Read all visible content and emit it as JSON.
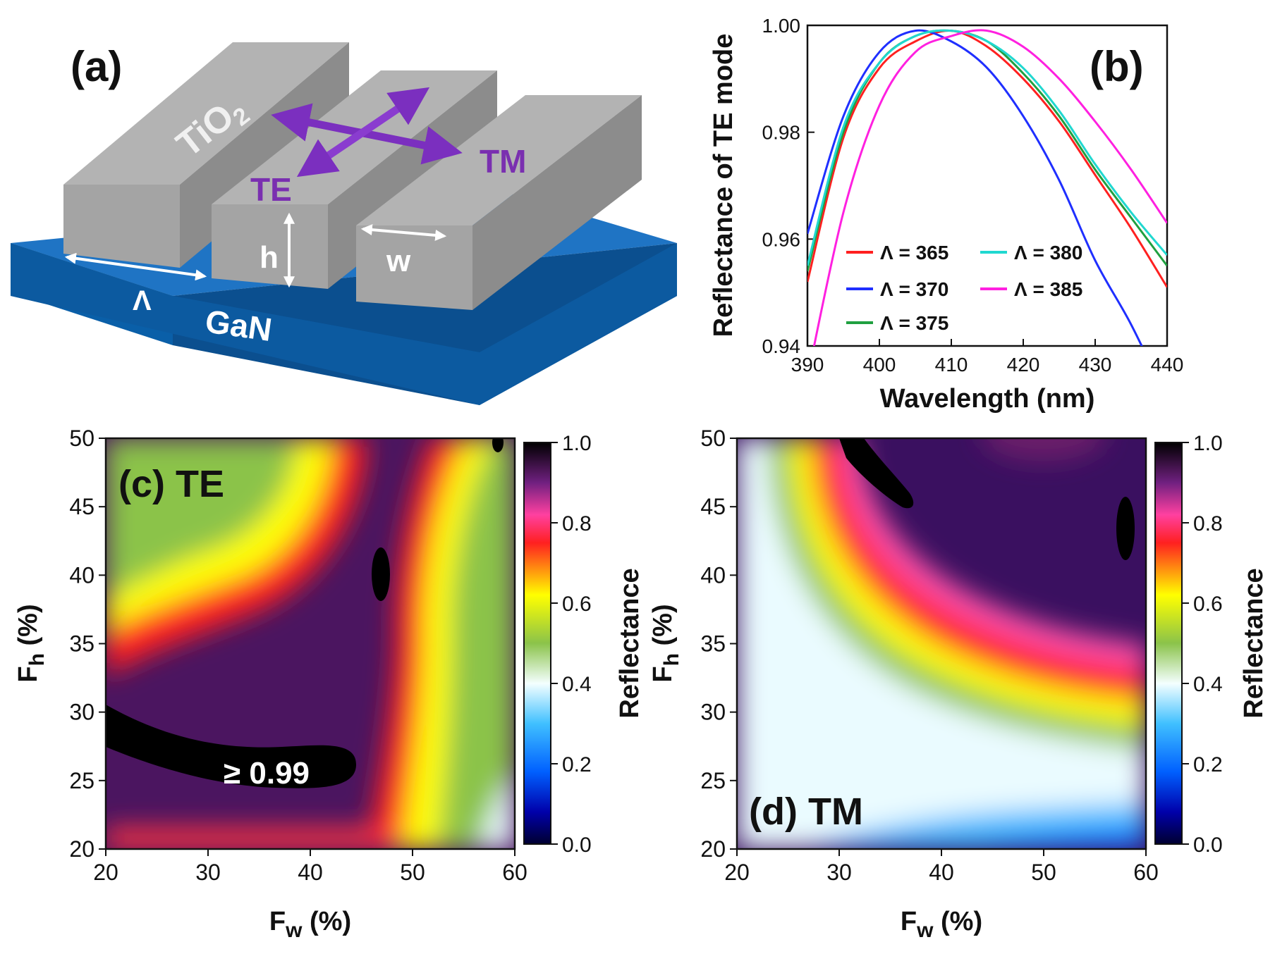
{
  "panel_a": {
    "label": "(a)",
    "tio2_label": "TiO",
    "tio2_sub": "2",
    "substrate_label": "GaN",
    "te_label": "TE",
    "tm_label": "TM",
    "h_label": "h",
    "w_label": "w",
    "period_label": "Λ",
    "colors": {
      "substrate": "#0a5fa8",
      "bars": "#a6a6a6",
      "arrows": "#7b2fbf",
      "labels": "#7a2fb0"
    }
  },
  "chart_data": [
    {
      "panel": "(b)",
      "type": "line",
      "xlabel": "Wavelength (nm)",
      "ylabel": "Reflectance of TE mode",
      "xlim": [
        390,
        440
      ],
      "ylim": [
        0.94,
        1.0
      ],
      "xticks": [
        "390",
        "400",
        "410",
        "420",
        "430",
        "440"
      ],
      "yticks": [
        "0.94",
        "0.96",
        "0.98",
        "1.00"
      ],
      "legend_position": "bottom-left",
      "x": [
        390,
        395,
        400,
        405,
        410,
        415,
        420,
        425,
        430,
        435,
        440
      ],
      "series": [
        {
          "name": "Λ = 365",
          "color": "#ff2020",
          "values": [
            0.952,
            0.979,
            0.992,
            0.997,
            0.999,
            0.996,
            0.99,
            0.982,
            0.972,
            0.962,
            0.951
          ]
        },
        {
          "name": "Λ = 370",
          "color": "#1f2fff",
          "values": [
            0.961,
            0.983,
            0.995,
            0.999,
            0.997,
            0.992,
            0.983,
            0.971,
            0.956,
            0.944,
            0.93
          ]
        },
        {
          "name": "Λ = 375",
          "color": "#20a040",
          "values": [
            0.954,
            0.98,
            0.993,
            0.998,
            0.999,
            0.997,
            0.991,
            0.983,
            0.973,
            0.964,
            0.955
          ]
        },
        {
          "name": "Λ = 380",
          "color": "#20d8d0",
          "values": [
            0.955,
            0.981,
            0.993,
            0.998,
            0.999,
            0.997,
            0.992,
            0.984,
            0.974,
            0.965,
            0.957
          ]
        },
        {
          "name": "Λ = 385",
          "color": "#ff20e0",
          "values": [
            0.934,
            0.965,
            0.985,
            0.995,
            0.998,
            0.999,
            0.996,
            0.99,
            0.982,
            0.973,
            0.963
          ]
        }
      ]
    },
    {
      "panel": "(c)",
      "mode": "TE",
      "type": "heatmap",
      "xlabel": "F",
      "xlabel_sub": "w",
      "xlabel_unit": " (%)",
      "ylabel": "F",
      "ylabel_sub": "h",
      "ylabel_unit": " (%)",
      "xlim": [
        20,
        60
      ],
      "ylim": [
        20,
        50
      ],
      "xticks": [
        "20",
        "30",
        "40",
        "50",
        "60"
      ],
      "yticks": [
        "20",
        "25",
        "30",
        "35",
        "40",
        "45",
        "50"
      ],
      "annotation": "≥ 0.99",
      "colorbar": {
        "label": "Reflectance",
        "range": [
          0.0,
          1.0
        ],
        "ticks": [
          "0.0",
          "0.2",
          "0.4",
          "0.6",
          "0.8",
          "1.0"
        ]
      }
    },
    {
      "panel": "(d)",
      "mode": "TM",
      "type": "heatmap",
      "xlabel": "F",
      "xlabel_sub": "w",
      "xlabel_unit": " (%)",
      "ylabel": "F",
      "ylabel_sub": "h",
      "ylabel_unit": " (%)",
      "xlim": [
        20,
        60
      ],
      "ylim": [
        20,
        50
      ],
      "xticks": [
        "20",
        "30",
        "40",
        "50",
        "60"
      ],
      "yticks": [
        "20",
        "25",
        "30",
        "35",
        "40",
        "45",
        "50"
      ],
      "colorbar": {
        "label": "Reflectance",
        "range": [
          0.0,
          1.0
        ],
        "ticks": [
          "0.0",
          "0.2",
          "0.4",
          "0.6",
          "0.8",
          "1.0"
        ]
      }
    }
  ],
  "colormap": [
    "#000000",
    "#1a0a5a",
    "#0032ff",
    "#2aa8ff",
    "#eafbff",
    "#8bc34a",
    "#ffff00",
    "#ff0000",
    "#ff66aa",
    "#6a2a8a",
    "#000000"
  ]
}
